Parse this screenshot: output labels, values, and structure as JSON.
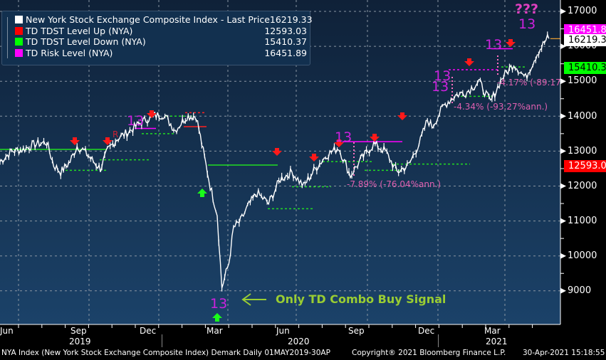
{
  "chart_data": {
    "type": "line",
    "title": "NYA Index (New York Stock Exchange Composite Index) Demark",
    "xlabel": "",
    "ylabel": "",
    "ylim": [
      8200,
      17400
    ],
    "grid": true,
    "legend_position": "top-left",
    "y_ticks": [
      9000,
      10000,
      11000,
      12000,
      13000,
      14000,
      15000,
      16000,
      17000
    ],
    "x_tick_labels": [
      "Jun",
      "Sep",
      "Dec",
      "Mar",
      "Jun",
      "Sep",
      "Dec",
      "Mar"
    ],
    "x_year_labels": [
      "2019",
      "2020",
      "2021"
    ],
    "series": [
      {
        "name": "New York Stock Exchange Composite Index - Last Price",
        "value": "16219.33",
        "color": "#ffffff"
      },
      {
        "name": "TD TDST Level Up (NYA)",
        "value": "12593.03",
        "color": "#ff0000"
      },
      {
        "name": "TD TDST Level Down (NYA)",
        "value": "15410.37",
        "color": "#00ff00"
      },
      {
        "name": "TD Risk Level (NYA)",
        "value": "16451.89",
        "color": "#ff00ff"
      }
    ],
    "price_path": {
      "x_months_from_start": [
        0,
        0.5,
        1,
        1.5,
        2,
        2.3,
        2.6,
        3,
        3.3,
        3.6,
        4,
        4.3,
        4.6,
        5,
        5.5,
        6,
        6.5,
        7,
        7.5,
        8,
        8.4,
        8.7,
        9,
        9.3,
        9.5,
        9.8,
        10,
        10.3,
        10.6,
        11,
        11.5,
        12,
        12.5,
        13,
        13.5,
        14,
        14.5,
        15,
        15.5,
        16,
        16.5,
        17,
        17.5,
        18,
        18.3,
        18.5,
        19,
        19.5,
        20,
        20.5,
        21,
        21.5,
        22,
        22.5,
        23,
        23.5
      ],
      "values": [
        12700,
        13000,
        13050,
        13200,
        13250,
        12600,
        12400,
        12700,
        13150,
        13000,
        12700,
        12500,
        13000,
        13350,
        13550,
        13800,
        14000,
        14050,
        13600,
        14000,
        14000,
        13000,
        12000,
        11200,
        9100,
        9800,
        10800,
        11000,
        11400,
        11800,
        11500,
        12200,
        12400,
        12000,
        12500,
        12900,
        13100,
        12300,
        12800,
        13200,
        13000,
        12400,
        12600,
        13300,
        13900,
        13700,
        14300,
        14600,
        14700,
        15000,
        14400,
        15100,
        15500,
        15100,
        15800,
        16300
      ]
    },
    "annotations": [
      {
        "text": "13",
        "type": "TD Sequential/Combo count",
        "near": "Dec 2019 high"
      },
      {
        "text": "R",
        "type": "label",
        "near": "Nov 2019"
      },
      {
        "text": "13",
        "type": "TD count",
        "near": "Mar 2020 low"
      },
      {
        "text": "Only TD Combo Buy Signal",
        "type": "callout",
        "near": "Mar 2020 low"
      },
      {
        "text": "13",
        "type": "TD count",
        "near": "Aug 2020 high"
      },
      {
        "text": "-7.89% (-76.04%ann.)",
        "type": "drawdown",
        "near": "Sep-Oct 2020"
      },
      {
        "text": "13",
        "type": "TD count",
        "near": "Jan 2021"
      },
      {
        "text": "13",
        "type": "TD count",
        "near": "Jan 2021"
      },
      {
        "text": "-4.34% (-93.27%ann.)",
        "type": "drawdown",
        "near": "late Jan 2021"
      },
      {
        "text": "13",
        "type": "TD count",
        "near": "Mar 2021"
      },
      {
        "text": "-4.17% (-89.17",
        "type": "drawdown",
        "near": "Mar 2021"
      },
      {
        "text": "13",
        "type": "TD count",
        "near": "Apr 2021"
      },
      {
        "text": "???",
        "type": "annotation",
        "near": "Apr 2021"
      }
    ]
  },
  "legend": {
    "items": [
      {
        "label": "New York Stock Exchange Composite Index - Last Price",
        "value": "16219.33",
        "color": "#ffffff"
      },
      {
        "label": "TD TDST Level Up (NYA)",
        "value": "12593.03",
        "color": "#ff0000"
      },
      {
        "label": "TD TDST Level Down (NYA)",
        "value": "15410.37",
        "color": "#00ff00"
      },
      {
        "label": "TD Risk Level (NYA)",
        "value": "16451.89",
        "color": "#ff00ff"
      }
    ]
  },
  "y_axis": {
    "labels": [
      "17000",
      "16000",
      "15000",
      "14000",
      "13000",
      "12000",
      "11000",
      "10000",
      "9000"
    ],
    "tags": {
      "risk": "16451.89",
      "last": "16219.33",
      "tdst_down": "15410.37",
      "tdst_up": "12593.03"
    }
  },
  "x_axis": {
    "months": [
      "Jun",
      "Sep",
      "Dec",
      "Mar",
      "Jun",
      "Sep",
      "Dec",
      "Mar"
    ],
    "years": [
      "2019",
      "2020",
      "2021"
    ]
  },
  "annotations": {
    "count13": "13",
    "r_label": "R",
    "question": "???",
    "callout": "Only TD Combo Buy Signal",
    "dd1": "-7.89% (-76.04%ann.)",
    "dd2": "-4.34% (-93.27%ann.)",
    "dd3": "-4.17% (-89.17"
  },
  "footer": {
    "left": "NYA Index (New York Stock Exchange Composite Index) Demark  Daily 01MAY2019-30AP",
    "center": "Copyright® 2021 Bloomberg Finance L.P.",
    "right": "30-Apr-2021 15:18:55"
  },
  "colors": {
    "bg_top": "#0f2138",
    "bg_bottom": "#1b4269",
    "price": "#ffffff",
    "up": "#ff0000",
    "down": "#00ff00",
    "risk": "#ff00ff",
    "annotation_pink": "#e060b0",
    "callout_green": "#9acd32"
  }
}
